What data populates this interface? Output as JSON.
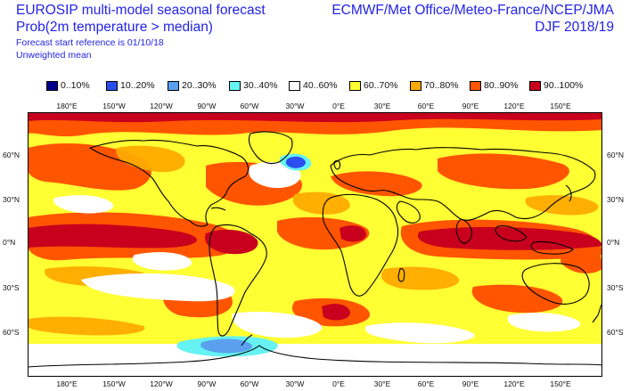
{
  "header": {
    "title_line1": "EUROSIP multi-model seasonal forecast",
    "title_line2": "Prob(2m temperature > median)",
    "forecast_start": "Forecast start reference is 01/10/18",
    "weighting": "Unweighted mean",
    "source": "ECMWF/Met Office/Meteo-France/NCEP/JMA",
    "season": "DJF 2018/19"
  },
  "legend": [
    {
      "label": "0..10%",
      "color": "#00008b"
    },
    {
      "label": "10..20%",
      "color": "#2a4ef0"
    },
    {
      "label": "20..30%",
      "color": "#5aa0ee"
    },
    {
      "label": "30..40%",
      "color": "#66f2f2"
    },
    {
      "label": "40..60%",
      "color": "#ffffff"
    },
    {
      "label": "60..70%",
      "color": "#ffff33"
    },
    {
      "label": "70..80%",
      "color": "#ffaa00"
    },
    {
      "label": "80..90%",
      "color": "#ff5500"
    },
    {
      "label": "90..100%",
      "color": "#c8001e"
    }
  ],
  "lon_ticks_top": [
    "180°E",
    "150°W",
    "120°W",
    "90°W",
    "60°W",
    "30°W",
    "0°E",
    "30°E",
    "60°E",
    "90°E",
    "120°E",
    "150°E"
  ],
  "lon_ticks_bottom": [
    "180°E",
    "150°W",
    "120°W",
    "90°W",
    "60°W",
    "30°W",
    "0°E",
    "30°E",
    "60°E",
    "90°E",
    "120°E",
    "150°E"
  ],
  "lat_ticks_left": [
    "60°N",
    "30°N",
    "0°N",
    "30°S",
    "60°S"
  ],
  "lat_ticks_right": [
    "60°N",
    "30°N",
    "0°N",
    "30°S",
    "60°S"
  ]
}
